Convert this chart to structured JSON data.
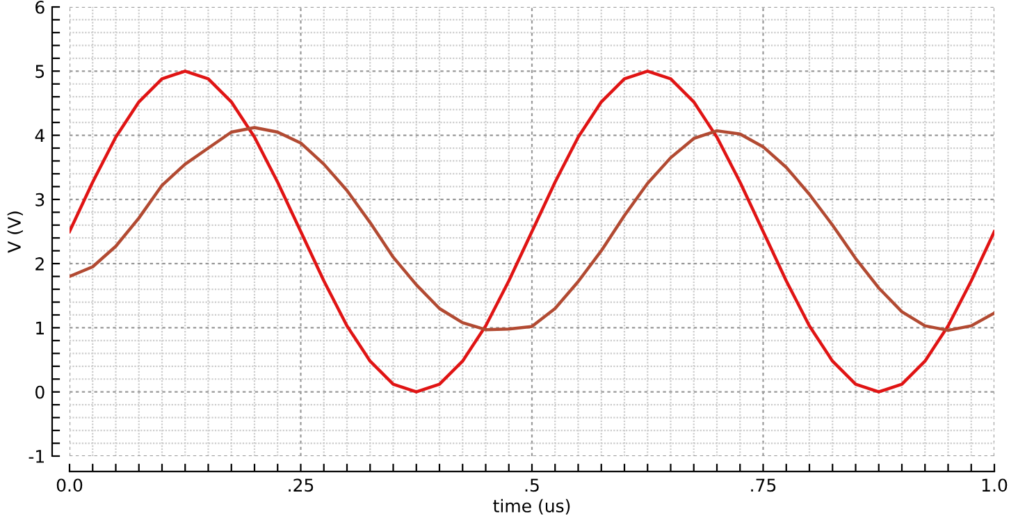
{
  "chart_data": {
    "type": "line",
    "xlabel": "time (us)",
    "ylabel": "V (V)",
    "xlim": [
      0,
      1
    ],
    "ylim": [
      -1,
      6
    ],
    "xticks": [
      {
        "value": 0,
        "label": "0.0"
      },
      {
        "value": 0.025,
        "label": null
      },
      {
        "value": 0.05,
        "label": null
      },
      {
        "value": 0.075,
        "label": null
      },
      {
        "value": 0.1,
        "label": null
      },
      {
        "value": 0.125,
        "label": null
      },
      {
        "value": 0.15,
        "label": null
      },
      {
        "value": 0.175,
        "label": null
      },
      {
        "value": 0.2,
        "label": null
      },
      {
        "value": 0.225,
        "label": null
      },
      {
        "value": 0.25,
        "label": ".25"
      },
      {
        "value": 0.275,
        "label": null
      },
      {
        "value": 0.3,
        "label": null
      },
      {
        "value": 0.325,
        "label": null
      },
      {
        "value": 0.35,
        "label": null
      },
      {
        "value": 0.375,
        "label": null
      },
      {
        "value": 0.4,
        "label": null
      },
      {
        "value": 0.425,
        "label": null
      },
      {
        "value": 0.45,
        "label": null
      },
      {
        "value": 0.475,
        "label": null
      },
      {
        "value": 0.5,
        "label": ".5"
      },
      {
        "value": 0.525,
        "label": null
      },
      {
        "value": 0.55,
        "label": null
      },
      {
        "value": 0.575,
        "label": null
      },
      {
        "value": 0.6,
        "label": null
      },
      {
        "value": 0.625,
        "label": null
      },
      {
        "value": 0.65,
        "label": null
      },
      {
        "value": 0.675,
        "label": null
      },
      {
        "value": 0.7,
        "label": null
      },
      {
        "value": 0.725,
        "label": null
      },
      {
        "value": 0.75,
        "label": ".75"
      },
      {
        "value": 0.775,
        "label": null
      },
      {
        "value": 0.8,
        "label": null
      },
      {
        "value": 0.825,
        "label": null
      },
      {
        "value": 0.85,
        "label": null
      },
      {
        "value": 0.875,
        "label": null
      },
      {
        "value": 0.9,
        "label": null
      },
      {
        "value": 0.925,
        "label": null
      },
      {
        "value": 0.95,
        "label": null
      },
      {
        "value": 0.975,
        "label": null
      },
      {
        "value": 1,
        "label": "1.0"
      }
    ],
    "yticks": [
      -1,
      {
        "value": -0.8,
        "label": null
      },
      {
        "value": -0.6,
        "label": null
      },
      {
        "value": -0.4,
        "label": null
      },
      {
        "value": -0.2,
        "label": null
      },
      0,
      {
        "value": 0.2,
        "label": null
      },
      {
        "value": 0.4,
        "label": null
      },
      {
        "value": 0.6,
        "label": null
      },
      {
        "value": 0.8,
        "label": null
      },
      1,
      {
        "value": 1.2,
        "label": null
      },
      {
        "value": 1.4,
        "label": null
      },
      {
        "value": 1.6,
        "label": null
      },
      {
        "value": 1.8,
        "label": null
      },
      2,
      {
        "value": 2.2,
        "label": null
      },
      {
        "value": 2.4,
        "label": null
      },
      {
        "value": 2.6,
        "label": null
      },
      {
        "value": 2.8,
        "label": null
      },
      3,
      {
        "value": 3.2,
        "label": null
      },
      {
        "value": 3.4,
        "label": null
      },
      {
        "value": 3.6,
        "label": null
      },
      {
        "value": 3.8,
        "label": null
      },
      4,
      {
        "value": 4.2,
        "label": null
      },
      {
        "value": 4.4,
        "label": null
      },
      {
        "value": 4.6,
        "label": null
      },
      {
        "value": 4.8,
        "label": null
      },
      5,
      {
        "value": 5.2,
        "label": null
      },
      {
        "value": 5.4,
        "label": null
      },
      {
        "value": 5.6,
        "label": null
      },
      {
        "value": 5.8,
        "label": null
      },
      6
    ],
    "grid": true,
    "legend": false,
    "marker": "none",
    "line_style": "solid",
    "x": [
      0,
      0.025,
      0.05,
      0.075,
      0.1,
      0.125,
      0.15,
      0.175,
      0.2,
      0.225,
      0.25,
      0.275,
      0.3,
      0.325,
      0.35,
      0.375,
      0.4,
      0.425,
      0.45,
      0.475,
      0.5,
      0.525,
      0.55,
      0.575,
      0.6,
      0.625,
      0.65,
      0.675,
      0.7,
      0.725,
      0.75,
      0.775,
      0.8,
      0.825,
      0.85,
      0.875,
      0.9,
      0.925,
      0.95,
      0.975,
      1
    ],
    "series": [
      {
        "color": "#e01414",
        "values": [
          2.5,
          3.27,
          3.97,
          4.52,
          4.88,
          5.0,
          4.88,
          4.52,
          3.97,
          3.27,
          2.5,
          1.73,
          1.03,
          0.48,
          0.12,
          0.0,
          0.12,
          0.48,
          1.03,
          1.73,
          2.5,
          3.27,
          3.97,
          4.52,
          4.88,
          5.0,
          4.88,
          4.52,
          3.97,
          3.27,
          2.5,
          1.73,
          1.03,
          0.48,
          0.12,
          0.0,
          0.12,
          0.48,
          1.03,
          1.73,
          2.5
        ]
      },
      {
        "color": "#b24a32",
        "values": [
          1.8,
          1.95,
          2.27,
          2.71,
          3.22,
          3.55,
          3.8,
          4.05,
          4.12,
          4.05,
          3.88,
          3.55,
          3.14,
          2.64,
          2.1,
          1.67,
          1.3,
          1.08,
          0.97,
          0.98,
          1.02,
          1.3,
          1.72,
          2.2,
          2.75,
          3.25,
          3.65,
          3.95,
          4.07,
          4.02,
          3.82,
          3.5,
          3.08,
          2.6,
          2.08,
          1.62,
          1.25,
          1.03,
          0.96,
          1.03,
          1.23
        ]
      }
    ]
  }
}
